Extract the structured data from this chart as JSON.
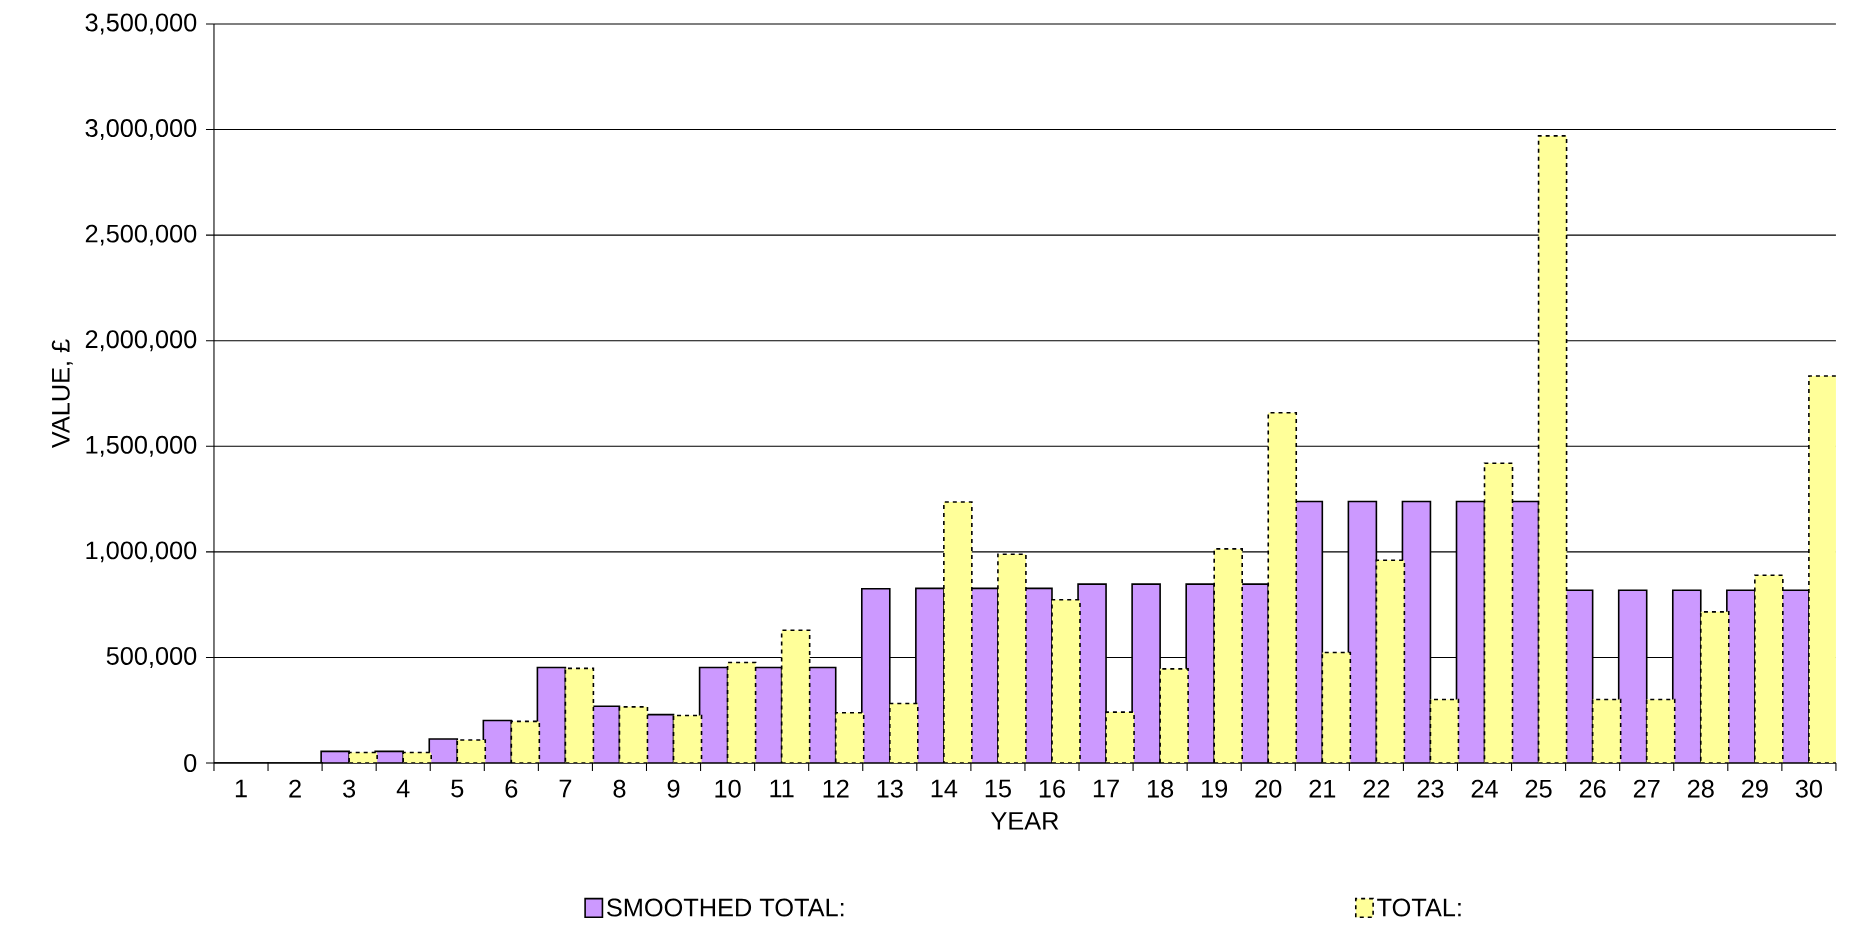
{
  "chart_data": {
    "type": "bar",
    "xlabel": "YEAR",
    "ylabel": "VALUE, £",
    "categories": [
      "1",
      "2",
      "3",
      "4",
      "5",
      "6",
      "7",
      "8",
      "9",
      "10",
      "11",
      "12",
      "13",
      "14",
      "15",
      "16",
      "17",
      "18",
      "19",
      "20",
      "21",
      "22",
      "23",
      "24",
      "25",
      "26",
      "27",
      "28",
      "29",
      "30"
    ],
    "series": [
      {
        "name": "SMOOTHED TOTAL:",
        "color": "#cc99ff",
        "line_style": "solid",
        "values": [
          0,
          0,
          55000,
          55000,
          114000,
          201000,
          452000,
          269000,
          229000,
          452000,
          452000,
          452000,
          825000,
          827000,
          827000,
          827000,
          847000,
          847000,
          847000,
          847000,
          1239000,
          1239000,
          1239000,
          1239000,
          1239000,
          818000,
          818000,
          818000,
          818000,
          818000
        ]
      },
      {
        "name": "TOTAL:",
        "color": "#ffff99",
        "line_style": "dashed",
        "values": [
          0,
          0,
          50000,
          50000,
          109000,
          197000,
          448000,
          266000,
          225000,
          476000,
          629000,
          238000,
          282000,
          1236000,
          989000,
          773000,
          241000,
          446000,
          1014000,
          1659000,
          523000,
          960000,
          301000,
          1420000,
          2970000,
          301000,
          301000,
          716000,
          889000,
          1833000
        ]
      }
    ],
    "ylim": [
      0,
      3500000
    ],
    "yticks": [
      {
        "value": 0,
        "label": "0"
      },
      {
        "value": 500000,
        "label": "500,000"
      },
      {
        "value": 1000000,
        "label": "1,000,000"
      },
      {
        "value": 1500000,
        "label": "1,500,000"
      },
      {
        "value": 2000000,
        "label": "2,000,000"
      },
      {
        "value": 2500000,
        "label": "2,500,000"
      },
      {
        "value": 3000000,
        "label": "3,000,000"
      },
      {
        "value": 3500000,
        "label": "3,500,000"
      }
    ],
    "grid": "y",
    "legend": "bottom"
  }
}
